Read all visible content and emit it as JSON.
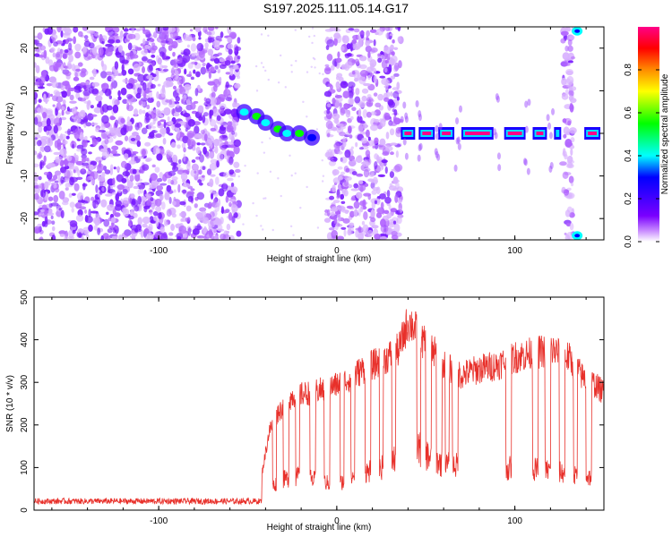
{
  "title": "S197.2025.111.05.14.G17",
  "colors": {
    "snr_line": "#e8302a",
    "cmap": [
      "#ffffff",
      "#c98dff",
      "#7a00ff",
      "#0000ff",
      "#00ffff",
      "#00ff00",
      "#ffff00",
      "#ff8c00",
      "#ff0000",
      "#ff0088"
    ]
  },
  "chart_data": [
    {
      "type": "heatmap",
      "title": "",
      "xlabel": "Height of straight line (km)",
      "ylabel": "Frequency (Hz)",
      "xlim": [
        -170,
        150
      ],
      "ylim": [
        -25,
        25
      ],
      "xticks": [
        -100,
        0,
        100
      ],
      "yticks": [
        -20,
        -10,
        0,
        10,
        20
      ],
      "colorbar": {
        "label": "Normalized spectral amplitude",
        "range": [
          0,
          1
        ],
        "ticks": [
          0.0,
          0.2,
          0.4,
          0.6,
          0.8
        ]
      },
      "regions": [
        {
          "x": [
            -170,
            -55
          ],
          "description_level": 0.25
        },
        {
          "x": [
            -6,
            36
          ],
          "description_level": 0.2
        },
        {
          "x": [
            127,
            133
          ],
          "description_level": 0.2
        }
      ],
      "ridge": [
        {
          "x": -52,
          "y": 5,
          "amp": 0.4
        },
        {
          "x": -45,
          "y": 4,
          "amp": 0.45
        },
        {
          "x": -40,
          "y": 2.5,
          "amp": 0.35
        },
        {
          "x": -33,
          "y": 1,
          "amp": 0.45
        },
        {
          "x": -28,
          "y": 0,
          "amp": 0.35
        },
        {
          "x": -21,
          "y": 0,
          "amp": 0.5
        },
        {
          "x": -14,
          "y": -1,
          "amp": 0.3
        }
      ],
      "band": {
        "y": 0,
        "segments": [
          [
            36,
            44
          ],
          [
            46,
            55
          ],
          [
            57,
            66
          ],
          [
            70,
            88
          ],
          [
            94,
            106
          ],
          [
            110,
            118
          ],
          [
            122,
            126
          ],
          [
            139,
            148
          ]
        ],
        "amp": 0.95
      }
    },
    {
      "type": "line",
      "title": "",
      "xlabel": "Height of straight line (km)",
      "ylabel": "SNR (10 * v/v)",
      "xlim": [
        -170,
        150
      ],
      "ylim": [
        0,
        500
      ],
      "xticks": [
        -100,
        0,
        100
      ],
      "yticks": [
        0,
        100,
        200,
        300,
        400,
        500
      ],
      "series": [
        {
          "baseline": [
            [
              -170,
              15
            ],
            [
              -45,
              18
            ],
            [
              -41,
              25
            ],
            [
              -38,
              60
            ],
            [
              -30,
              85
            ],
            [
              -20,
              95
            ],
            [
              -10,
              80
            ],
            [
              0,
              70
            ],
            [
              10,
              95
            ],
            [
              20,
              110
            ],
            [
              30,
              125
            ],
            [
              38,
              180
            ],
            [
              42,
              200
            ],
            [
              48,
              160
            ],
            [
              60,
              125
            ],
            [
              80,
              120
            ],
            [
              100,
              115
            ],
            [
              120,
              110
            ],
            [
              130,
              100
            ],
            [
              150,
              85
            ]
          ],
          "envelope": [
            [
              -170,
              15
            ],
            [
              -45,
              20
            ],
            [
              -41,
              120
            ],
            [
              -38,
              200
            ],
            [
              -33,
              250
            ],
            [
              -25,
              290
            ],
            [
              -15,
              300
            ],
            [
              -5,
              310
            ],
            [
              5,
              330
            ],
            [
              15,
              360
            ],
            [
              25,
              380
            ],
            [
              35,
              410
            ],
            [
              40,
              480
            ],
            [
              43,
              470
            ],
            [
              48,
              430
            ],
            [
              55,
              400
            ],
            [
              60,
              370
            ],
            [
              70,
              345
            ],
            [
              80,
              360
            ],
            [
              90,
              370
            ],
            [
              100,
              390
            ],
            [
              110,
              400
            ],
            [
              120,
              410
            ],
            [
              130,
              390
            ],
            [
              138,
              340
            ],
            [
              145,
              320
            ],
            [
              150,
              300
            ]
          ],
          "dropouts": [
            [
              -36,
              -34
            ],
            [
              -30,
              -27
            ],
            [
              -23,
              -21
            ],
            [
              -15,
              -12
            ],
            [
              -7,
              -4
            ],
            [
              2,
              4
            ],
            [
              8,
              10
            ],
            [
              16,
              19
            ],
            [
              24,
              26
            ],
            [
              31,
              33
            ],
            [
              45,
              47
            ],
            [
              50,
              53
            ],
            [
              56,
              59
            ],
            [
              61,
              63
            ],
            [
              65,
              68
            ],
            [
              95,
              98
            ],
            [
              110,
              113
            ],
            [
              117,
              120
            ],
            [
              125,
              128
            ],
            [
              133,
              135
            ],
            [
              140,
              143
            ]
          ]
        }
      ]
    }
  ]
}
